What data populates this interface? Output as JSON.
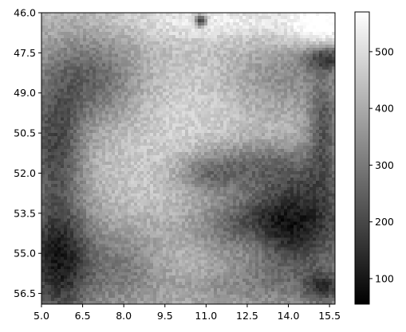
{
  "chart_data": {
    "type": "heatmap",
    "title": "",
    "xlabel": "",
    "ylabel": "",
    "x_ticks": [
      "5.0",
      "6.5",
      "8.0",
      "9.5",
      "11.0",
      "12.5",
      "14.0",
      "15.5"
    ],
    "y_ticks": [
      "46.0",
      "47.5",
      "49.0",
      "50.5",
      "52.0",
      "53.5",
      "55.0",
      "56.5"
    ],
    "xlim": [
      5.0,
      15.7
    ],
    "ylim": [
      56.9,
      46.0
    ],
    "y_axis_inverted": true,
    "colormap": "gray",
    "colorbar": {
      "range": [
        55,
        570
      ],
      "ticks": [
        "100",
        "200",
        "300",
        "400",
        "500"
      ],
      "tick_values": [
        100,
        200,
        300,
        400,
        500
      ]
    },
    "grid": false,
    "approximate_field": {
      "description_of_pattern": "grayscale brightness field",
      "background_value": 420,
      "features": [
        {
          "x": 10.5,
          "y": 50.0,
          "sx": 2.2,
          "sy": 2.5,
          "value": 470
        },
        {
          "x": 9.3,
          "y": 52.9,
          "sx": 1.6,
          "sy": 2.6,
          "value": 440
        },
        {
          "x": 5.6,
          "y": 55.3,
          "sx": 0.9,
          "sy": 1.6,
          "value": 110
        },
        {
          "x": 5.5,
          "y": 51.0,
          "sx": 0.7,
          "sy": 1.6,
          "value": 210
        },
        {
          "x": 6.8,
          "y": 48.5,
          "sx": 1.3,
          "sy": 1.2,
          "value": 250
        },
        {
          "x": 14.3,
          "y": 54.7,
          "sx": 1.5,
          "sy": 1.5,
          "value": 230
        },
        {
          "x": 13.0,
          "y": 53.9,
          "sx": 2.0,
          "sy": 0.7,
          "value": 260
        },
        {
          "x": 14.5,
          "y": 52.6,
          "sx": 1.4,
          "sy": 0.8,
          "value": 290
        },
        {
          "x": 12.7,
          "y": 51.6,
          "sx": 1.6,
          "sy": 0.6,
          "value": 300
        },
        {
          "x": 11.1,
          "y": 52.1,
          "sx": 0.9,
          "sy": 0.5,
          "value": 290
        },
        {
          "x": 13.7,
          "y": 48.5,
          "sx": 1.3,
          "sy": 0.9,
          "value": 330
        },
        {
          "x": 11.8,
          "y": 46.3,
          "sx": 3.0,
          "sy": 0.5,
          "value": 520
        },
        {
          "x": 15.2,
          "y": 46.5,
          "sx": 0.8,
          "sy": 0.6,
          "value": 560
        },
        {
          "x": 10.8,
          "y": 46.3,
          "sx": 0.15,
          "sy": 0.15,
          "value": 60
        },
        {
          "x": 15.4,
          "y": 47.7,
          "sx": 0.6,
          "sy": 0.35,
          "value": 200
        },
        {
          "x": 8.0,
          "y": 55.6,
          "sx": 1.0,
          "sy": 1.1,
          "value": 300
        },
        {
          "x": 11.5,
          "y": 56.3,
          "sx": 1.5,
          "sy": 0.5,
          "value": 360
        },
        {
          "x": 15.3,
          "y": 56.3,
          "sx": 0.5,
          "sy": 0.4,
          "value": 230
        },
        {
          "x": 12.8,
          "y": 54.6,
          "sx": 0.5,
          "sy": 0.5,
          "value": 480
        },
        {
          "x": 15.3,
          "y": 50.3,
          "sx": 0.4,
          "sy": 1.3,
          "value": 230
        }
      ]
    }
  }
}
